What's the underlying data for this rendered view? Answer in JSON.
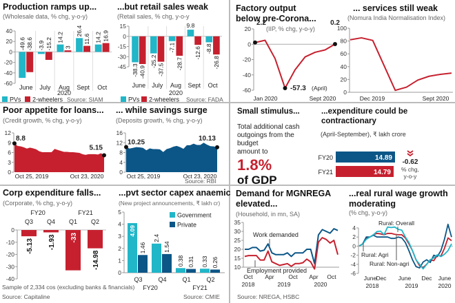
{
  "colors": {
    "cyan": "#21b6c8",
    "red": "#c6202e",
    "navy": "#0c5687",
    "axis": "#999999"
  },
  "chart_data": [
    {
      "type": "bar",
      "title": "Production ramps up...",
      "subtitle": "(Wholesale data, % chg, y-o-y)",
      "categories": [
        "June",
        "July",
        "Aug",
        "Sept",
        "Oct"
      ],
      "xlabel": "2020",
      "ylim": [
        -60,
        40
      ],
      "yticks": [
        40,
        20,
        0,
        -20,
        -40,
        -60
      ],
      "series": [
        {
          "name": "PVs",
          "color": "#21b6c8",
          "values": [
            -49.6,
            -3.9,
            14.2,
            26.4,
            14.2
          ]
        },
        {
          "name": "2-wheelers",
          "color": "#c6202e",
          "values": [
            -38.6,
            -15.2,
            3,
            11.6,
            16.9
          ]
        }
      ],
      "source": "Source: SIAM",
      "legend": "bottom"
    },
    {
      "type": "bar",
      "title": "...but retail sales weak",
      "subtitle": "(Retail sales, % chg, y-o-y",
      "categories": [
        "June",
        "July",
        "Aug",
        "Sept",
        "Oct"
      ],
      "xlabel": "2020",
      "ylim": [
        -45,
        15
      ],
      "yticks": [
        15,
        0,
        -15,
        -30,
        -45
      ],
      "series": [
        {
          "name": "PVs",
          "color": "#21b6c8",
          "values": [
            -38.3,
            -25.2,
            -7.1,
            9.8,
            -8.8
          ]
        },
        {
          "name": "2-wheelers",
          "color": "#c6202e",
          "values": [
            -40.9,
            -37.5,
            -28.7,
            -12.6,
            -26.8
          ]
        }
      ],
      "source": "Source: FADA",
      "legend": "bottom"
    },
    {
      "type": "line",
      "title": "Factory output",
      "title2": "below pre-Corona...",
      "subtitle": "(IIP, % chg, y-o-y)",
      "ylim": [
        -60,
        20
      ],
      "yticks": [
        20,
        0,
        -20,
        -40,
        -60
      ],
      "xticklabels": [
        "Jan 2020",
        "Sept 2020"
      ],
      "x": [
        "Jan",
        "Feb",
        "Mar",
        "Apr",
        "May",
        "Jun",
        "Jul",
        "Aug",
        "Sep"
      ],
      "series": [
        {
          "color": "#c6202e",
          "values": [
            2.2,
            5.2,
            -18.7,
            -57.3,
            -33.4,
            -16.6,
            -10.5,
            -7.4,
            0.2
          ]
        }
      ],
      "annotations": {
        "first": "2.2",
        "last": "0.2",
        "min": "-57.3",
        "min_note": "(April)"
      }
    },
    {
      "type": "line",
      "title": "... services still weak",
      "subtitle": "(Nomura India Normalisation Index)",
      "ylim": [
        0,
        100
      ],
      "yticks": [
        100,
        80,
        60,
        40,
        20,
        0
      ],
      "xticklabels": [
        "Dec 2019",
        "Sept 2020"
      ],
      "series": [
        {
          "color": "#c6202e",
          "values": [
            82,
            85,
            81,
            42,
            3,
            8,
            19,
            25,
            28,
            30
          ]
        }
      ]
    },
    {
      "type": "area",
      "title": "Poor appetite for loans...",
      "subtitle": "(Credit growth, % chg, y-o-y)",
      "ylim": [
        0,
        12
      ],
      "yticks": [
        12,
        9,
        6,
        3,
        0
      ],
      "xticklabels": [
        "Oct 25, 2019",
        "Oct 23, 2020"
      ],
      "series": [
        {
          "color": "#c6202e",
          "values": [
            8.8,
            8,
            7.9,
            7.6,
            7.2,
            7.5,
            7.3,
            7,
            6.4,
            6.1,
            6.1,
            6.1,
            6.1,
            7.1,
            6.8,
            6.5,
            6.2,
            6.2,
            6.1,
            6.1,
            6,
            5.9,
            5.5,
            5.3,
            5.5,
            5.5,
            5.5,
            5.4,
            5.8,
            5.15
          ]
        }
      ],
      "annotations": {
        "first": "8.8",
        "last": "5.15"
      }
    },
    {
      "type": "area",
      "title": "... while savings surge",
      "subtitle": "(Deposits growth, % chg, y-o-y)",
      "ylim": [
        0,
        16
      ],
      "yticks": [
        16,
        12,
        8,
        4,
        0
      ],
      "xticklabels": [
        "Oct 25, 2019",
        "Oct 23, 2020"
      ],
      "series": [
        {
          "color": "#0c5687",
          "values": [
            10.25,
            9.6,
            9.9,
            10.2,
            10.1,
            9.9,
            8.9,
            9.7,
            9.4,
            9.4,
            9.3,
            8.2,
            9.4,
            9.8,
            10.4,
            10.7,
            10.2,
            9.5,
            11,
            11,
            11.6,
            11.1,
            11.1,
            12,
            11.2,
            10.6,
            10.5,
            10.13
          ]
        }
      ],
      "annotations": {
        "first": "10.25",
        "last": "10.13"
      },
      "source": "Source: RBI"
    },
    {
      "type": "table",
      "title": "Small stimulus...",
      "body": [
        "Total additional cash",
        "outgoings from the",
        "budget",
        "amount to"
      ],
      "big": "1.8%",
      "big2": "of GDP"
    },
    {
      "type": "bar",
      "orientation": "horizontal",
      "title": "...expenditure could be",
      "title2": "contractionary",
      "subtitle": "(April-September), ₹ lakh crore",
      "categories": [
        "FY20",
        "FY21"
      ],
      "values": [
        14.89,
        14.79
      ],
      "colors": [
        "#0c5687",
        "#c6202e"
      ],
      "change": "-0.62",
      "change_label": [
        "% chg,",
        "y-o-y"
      ],
      "change_icon": "double-chevron-down-icon"
    },
    {
      "type": "bar",
      "title": "Corp expenditure falls...",
      "subtitle": "(Corporate, % chg, y-o-y)",
      "groups": [
        "FY20",
        "FY21"
      ],
      "categories": [
        "Q3",
        "Q4",
        "Q1",
        "Q2"
      ],
      "ylim": [
        -40,
        0
      ],
      "yticks": [
        0,
        -10,
        -20,
        -30,
        -40
      ],
      "series": [
        {
          "color": "#c6202e",
          "values": [
            -5.13,
            -1.93,
            -33,
            -14.98
          ]
        }
      ],
      "note": "Sample of 2,334 cos (excluding banks & financials)",
      "source": "Source: Capitaline"
    },
    {
      "type": "bar",
      "title": "...pvt sector capex anaemic",
      "subtitle": "(New project announcements, ₹ lakh cr)",
      "groups": [
        "FY20",
        "FY21"
      ],
      "categories": [
        "Q3",
        "Q4",
        "Q1",
        "Q2"
      ],
      "ylim": [
        0,
        5
      ],
      "yticks": [
        5,
        4,
        3,
        2,
        1,
        0
      ],
      "series": [
        {
          "name": "Government",
          "color": "#21b6c8",
          "values": [
            4.09,
            2.4,
            0.38,
            0.33
          ]
        },
        {
          "name": "Private",
          "color": "#0c5687",
          "values": [
            1.46,
            1.54,
            0.31,
            0.26
          ]
        }
      ],
      "source": "Source: CMIE",
      "legend": "top-right"
    },
    {
      "type": "line",
      "title": "Demand for MGNREGA",
      "title2": "elevated...",
      "subtitle": "(Household, in mn, SA)",
      "ylim": [
        10,
        35
      ],
      "yticks": [
        35,
        30,
        25,
        20,
        15,
        10
      ],
      "xticklabels": [
        "Oct",
        "Apr",
        "Oct",
        "Apr",
        "Oct"
      ],
      "xyears": [
        "2018",
        "2019",
        "2020"
      ],
      "series": [
        {
          "name": "Work demanded",
          "color": "#0c5687",
          "values": [
            20,
            20,
            21,
            21,
            19,
            19.5,
            23,
            18,
            17,
            17,
            17,
            18,
            16,
            18,
            18,
            18,
            20,
            20,
            12,
            28,
            31,
            30,
            29,
            31.5,
            30.5
          ]
        },
        {
          "name": "Employment provided",
          "color": "#c6202e",
          "values": [
            16,
            16.5,
            16.5,
            16.5,
            14,
            14,
            19,
            13,
            12,
            11,
            11.5,
            12,
            10.5,
            12,
            12,
            12.5,
            14.5,
            13,
            9,
            24,
            26.5,
            25.5,
            23.5,
            25,
            17
          ]
        }
      ],
      "source": "Source: NREGA, HSBC"
    },
    {
      "type": "line",
      "title": "...real rural wage growth",
      "title2": "moderating",
      "subtitle": "(% chg, y-o-y)",
      "ylim": [
        -6,
        4
      ],
      "yticks": [
        4,
        2,
        0,
        -2,
        -4,
        -6
      ],
      "xticklabels": [
        "June",
        "Dec",
        "June",
        "Dec",
        "June"
      ],
      "xyears": [
        "2018",
        "2019",
        "2020"
      ],
      "series": [
        {
          "name": "Rural: Overall",
          "color": "#c6202e",
          "values": [
            0,
            0.5,
            1.8,
            2,
            2.5,
            2.8,
            2.7,
            2.5,
            2.8,
            2.8,
            2.6,
            2.5,
            2.5,
            1.8,
            0.5,
            -1,
            -3,
            -4.3,
            -4.7,
            -4,
            -3,
            -3.2,
            -2,
            -2.2,
            -0.5,
            1.8,
            1.2
          ]
        },
        {
          "name": "Rural: Agri",
          "color": "#0c5687",
          "values": [
            0,
            0.5,
            2,
            2,
            2.4,
            2,
            2,
            2,
            2,
            1.7,
            1.7,
            2,
            1.8,
            0.8,
            -1,
            -3,
            -4.5,
            -4.8,
            -3.5,
            -3,
            -3.6,
            -2,
            -2.3,
            -1,
            1.5,
            4.8,
            2
          ]
        },
        {
          "name": "Rural: Non-agri",
          "color": "#21b6c8",
          "values": [
            0,
            0.5,
            1.5,
            2,
            2.5,
            3.2,
            3.3,
            2.5,
            4.2,
            4.1,
            4.2,
            3.7,
            3.5,
            2,
            0.8,
            -1,
            -3,
            -4,
            -5,
            -4,
            -3,
            -2.6,
            -1.9,
            -2.3,
            -1.8,
            -1,
            0.5
          ]
        }
      ]
    }
  ]
}
